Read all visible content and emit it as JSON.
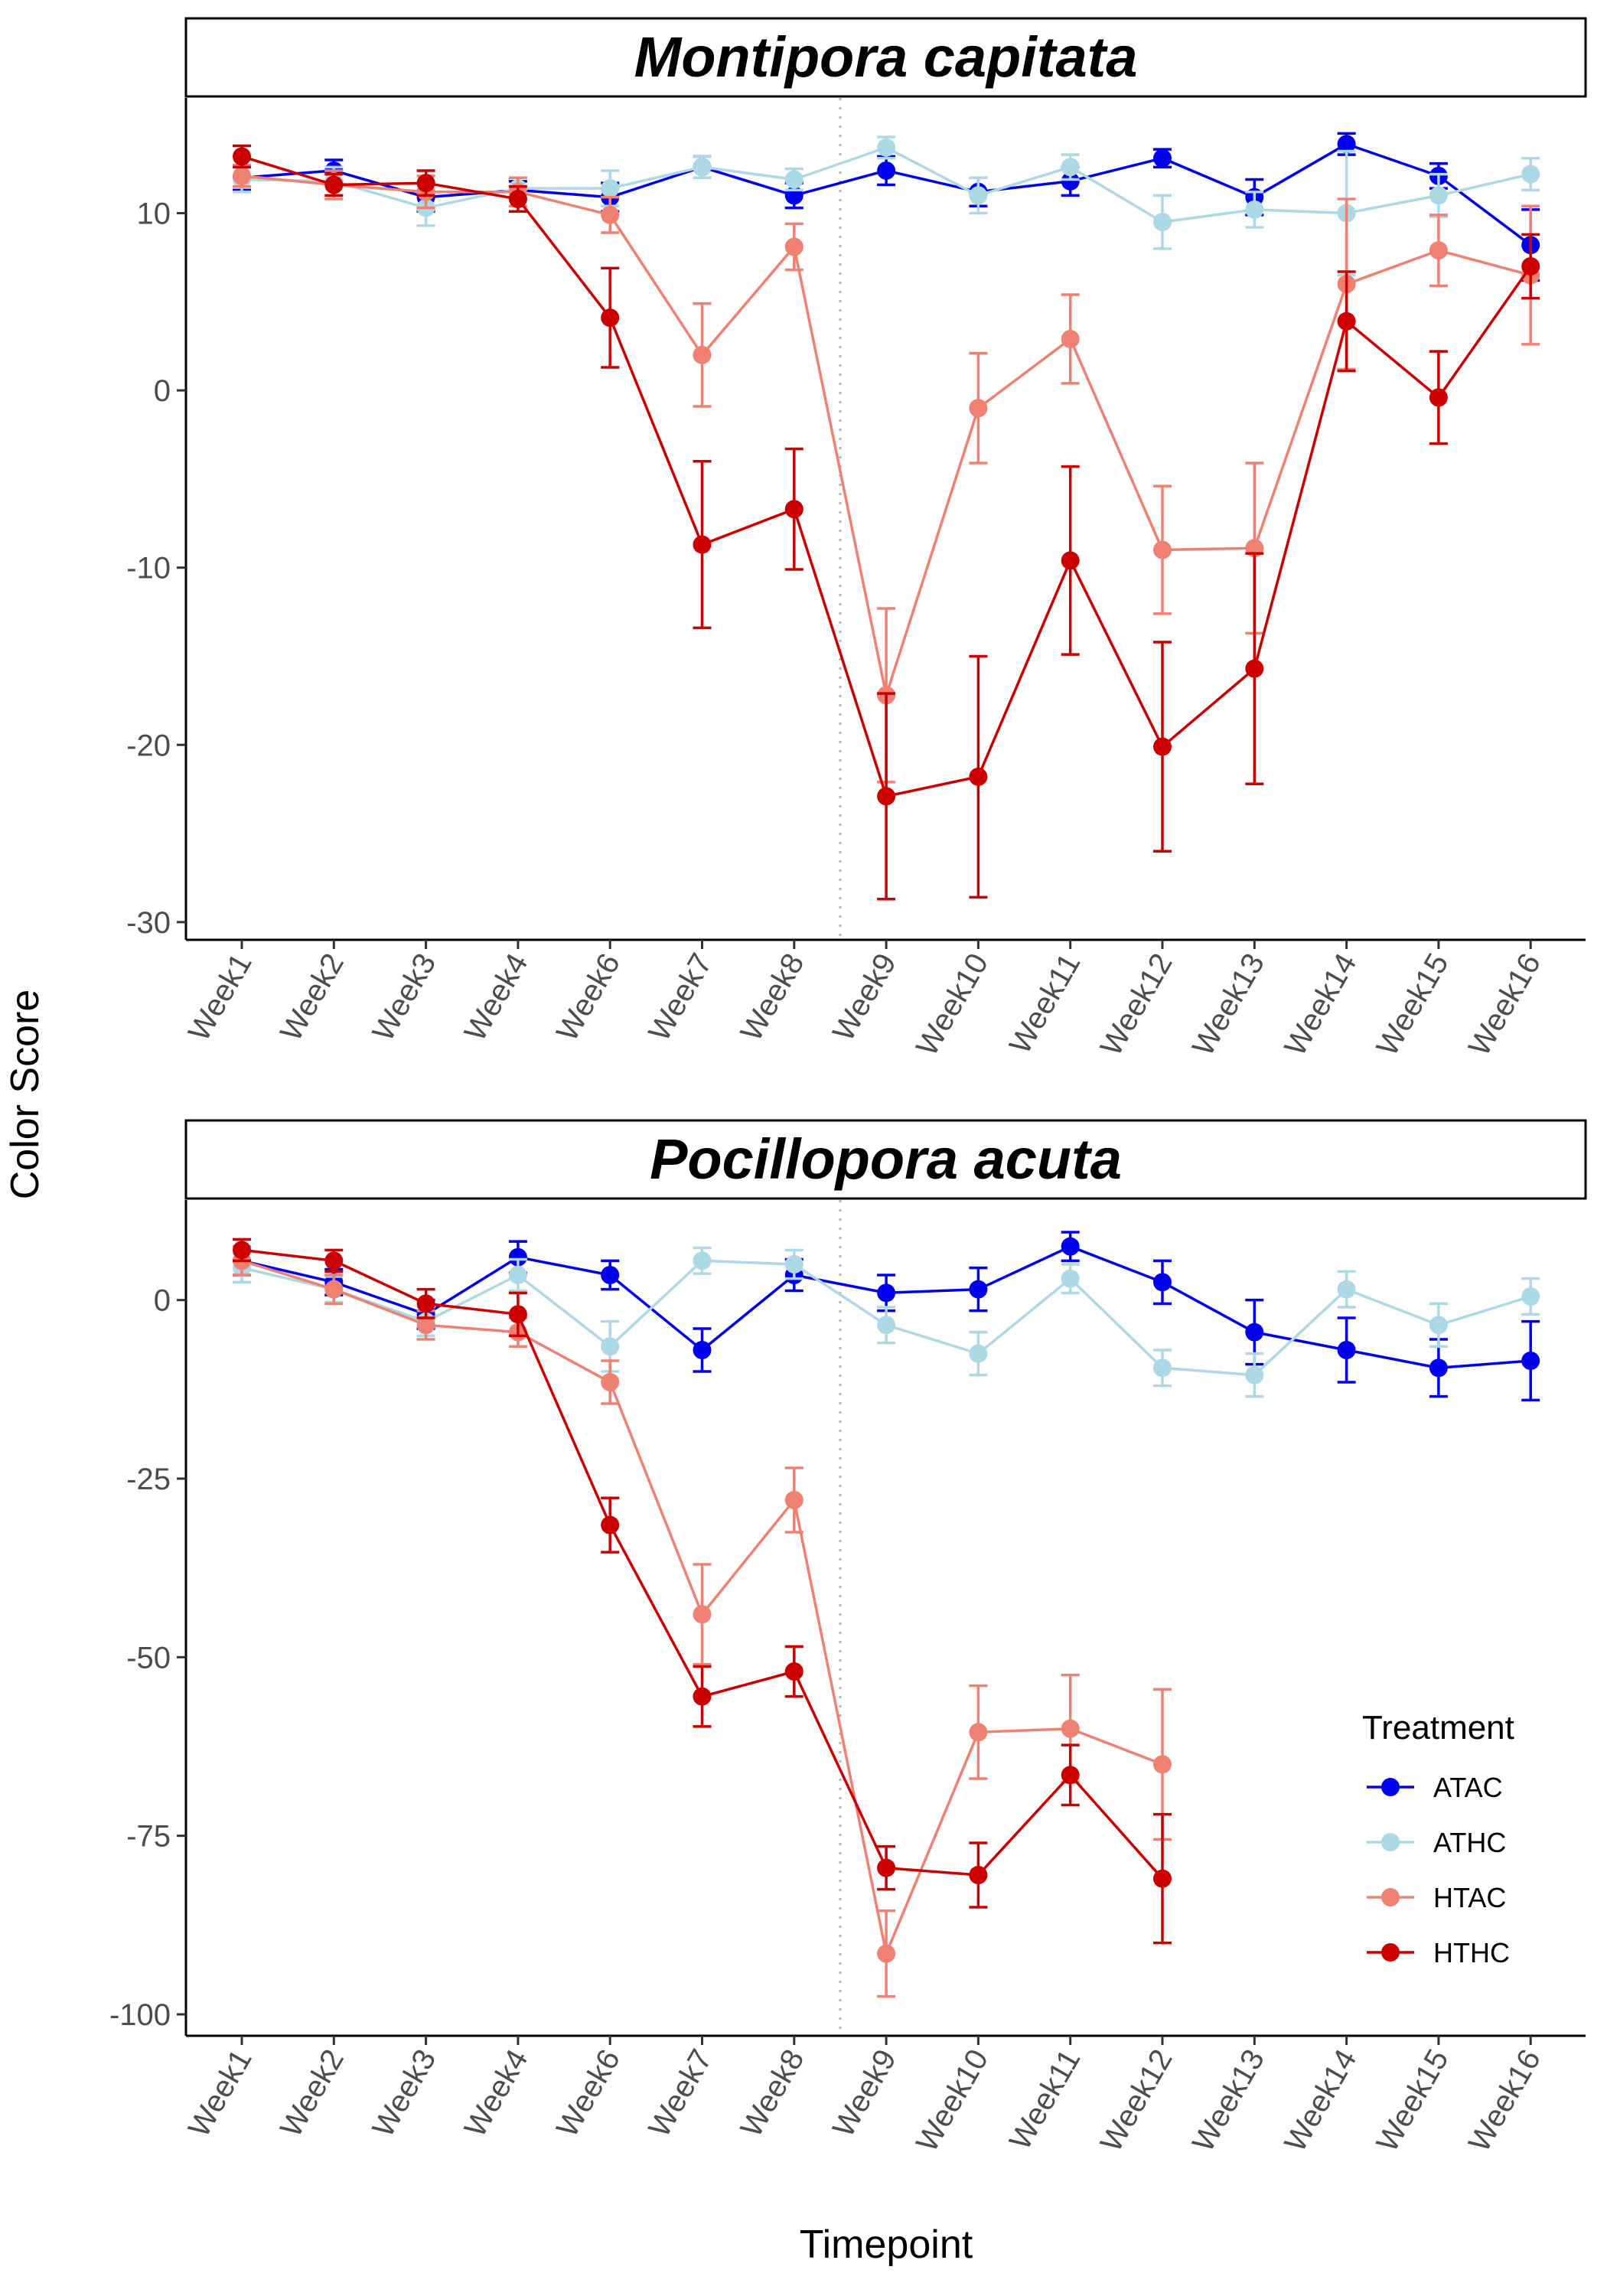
{
  "chart_data": {
    "type": "line",
    "xlabel": "Timepoint",
    "ylabel": "Color Score",
    "legend": {
      "title": "Treatment",
      "placement": "right-inside-bottom-panel"
    },
    "categories": [
      "Week1",
      "Week2",
      "Week3",
      "Week4",
      "Week6",
      "Week7",
      "Week8",
      "Week9",
      "Week10",
      "Week11",
      "Week12",
      "Week13",
      "Week14",
      "Week15",
      "Week16"
    ],
    "series_styles": [
      {
        "name": "ATAC",
        "color": "#0000ee"
      },
      {
        "name": "ATHC",
        "color": "#add8e6"
      },
      {
        "name": "HTAC",
        "color": "#f08072"
      },
      {
        "name": "HTHC",
        "color": "#cc0000"
      }
    ],
    "vline_between": [
      "Week8",
      "Week9"
    ],
    "grid": false,
    "panels": [
      {
        "title": "Montipora capitata",
        "ylim": [
          -31,
          16.5
        ],
        "yticks": [
          10,
          0,
          -10,
          -20,
          -30
        ],
        "series": [
          {
            "name": "ATAC",
            "values": [
              12.0,
              12.4,
              10.9,
              11.3,
              10.9,
              12.6,
              11.0,
              12.4,
              11.2,
              11.8,
              13.1,
              10.9,
              13.9,
              12.1,
              8.2
            ],
            "err": [
              0.7,
              0.6,
              0.8,
              0.5,
              0.8,
              0.6,
              0.7,
              0.8,
              0.8,
              0.8,
              0.5,
              1.0,
              0.6,
              0.7,
              2.0
            ]
          },
          {
            "name": "ATHC",
            "values": [
              11.9,
              11.8,
              10.3,
              11.4,
              11.4,
              12.6,
              11.9,
              13.7,
              11.0,
              12.6,
              9.5,
              10.2,
              10.0,
              11.0,
              12.2
            ],
            "err": [
              0.7,
              0.8,
              1.0,
              0.6,
              1.0,
              0.6,
              0.6,
              0.6,
              1.0,
              0.7,
              1.5,
              1.0,
              3.5,
              1.2,
              0.9
            ]
          },
          {
            "name": "HTAC",
            "values": [
              12.1,
              11.6,
              11.2,
              11.2,
              9.9,
              2.0,
              8.1,
              -17.2,
              -1.0,
              2.9,
              -9.0,
              -8.9,
              6.0,
              7.9,
              6.5
            ],
            "err": [
              0.6,
              0.8,
              0.9,
              0.8,
              1.0,
              2.9,
              1.3,
              4.9,
              3.1,
              2.5,
              3.6,
              4.8,
              4.8,
              2.0,
              3.9
            ]
          },
          {
            "name": "HTHC",
            "values": [
              13.2,
              11.6,
              11.7,
              10.8,
              4.1,
              -8.7,
              -6.7,
              -22.9,
              -21.8,
              -9.6,
              -20.1,
              -15.7,
              3.9,
              -0.4,
              7.0
            ],
            "err": [
              0.6,
              0.6,
              0.7,
              0.7,
              2.8,
              4.7,
              3.4,
              5.8,
              6.8,
              5.3,
              5.9,
              6.5,
              2.8,
              2.6,
              1.8
            ]
          }
        ]
      },
      {
        "title": "Pocillopora acuta",
        "ylim": [
          -103,
          14
        ],
        "yticks": [
          0,
          -25,
          -50,
          -75,
          -100
        ],
        "series": [
          {
            "name": "ATAC",
            "values": [
              5.5,
              2.5,
              -2.0,
              6.0,
              3.5,
              -7.0,
              3.5,
              1.0,
              1.5,
              7.5,
              2.5,
              -4.5,
              -7.0,
              -9.5,
              -8.5
            ],
            "err": [
              2.0,
              1.8,
              2.0,
              2.2,
              2.0,
              3.0,
              2.2,
              2.5,
              3.0,
              2.0,
              3.0,
              4.5,
              4.5,
              4.0,
              5.5
            ]
          },
          {
            "name": "ATHC",
            "values": [
              4.5,
              1.5,
              -3.0,
              3.5,
              -6.5,
              5.5,
              5.0,
              -3.5,
              -7.5,
              3.0,
              -9.5,
              -10.5,
              1.5,
              -3.5,
              0.5
            ],
            "err": [
              2.0,
              1.8,
              2.0,
              2.2,
              3.5,
              1.8,
              2.0,
              2.5,
              3.0,
              2.0,
              2.5,
              3.0,
              2.5,
              3.0,
              2.5
            ]
          },
          {
            "name": "HTAC",
            "values": [
              5.5,
              1.5,
              -3.5,
              -4.5,
              -11.5,
              -44.0,
              -28.0,
              -91.5,
              -60.5,
              -60.0,
              -65.0,
              null,
              null,
              null,
              null
            ],
            "err": [
              2.0,
              2.0,
              2.0,
              2.0,
              3.0,
              7.0,
              4.5,
              6.0,
              6.5,
              7.5,
              10.5,
              null,
              null,
              null,
              null
            ]
          },
          {
            "name": "HTHC",
            "values": [
              7.0,
              5.5,
              -0.5,
              -2.0,
              -31.5,
              -55.5,
              -52.0,
              -79.5,
              -80.5,
              -66.5,
              -81.0,
              null,
              null,
              null,
              null
            ],
            "err": [
              1.5,
              1.5,
              2.0,
              3.0,
              3.8,
              4.2,
              3.5,
              3.0,
              4.5,
              4.2,
              9.0,
              null,
              null,
              null,
              null
            ]
          }
        ]
      }
    ]
  }
}
